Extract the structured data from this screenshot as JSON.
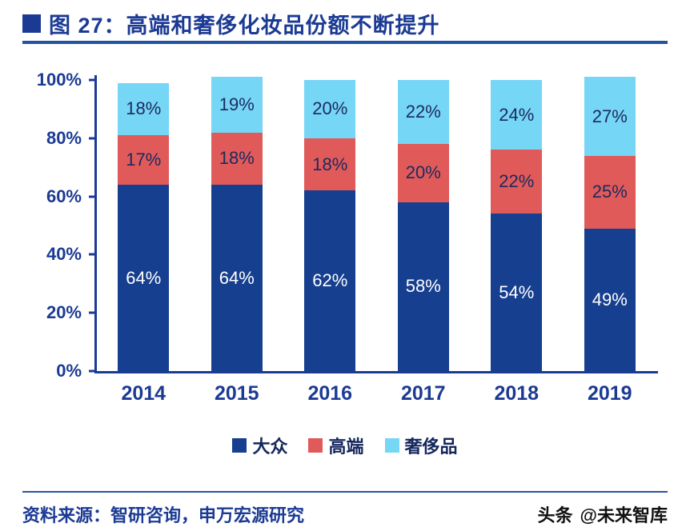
{
  "title": "图 27：高端和奢侈化妆品份额不断提升",
  "chart_data": {
    "type": "bar",
    "stacked": true,
    "title": "图 27：高端和奢侈化妆品份额不断提升",
    "xlabel": "",
    "ylabel": "",
    "categories": [
      "2014",
      "2015",
      "2016",
      "2017",
      "2018",
      "2019"
    ],
    "series": [
      {
        "name": "大众",
        "color": "#163f8f",
        "label_color": "#ffffff",
        "values": [
          64,
          64,
          62,
          58,
          54,
          49
        ]
      },
      {
        "name": "高端",
        "color": "#e05a5a",
        "label_color": "#1b2a5e",
        "values": [
          17,
          18,
          18,
          20,
          22,
          25
        ]
      },
      {
        "name": "奢侈品",
        "color": "#76d6f5",
        "label_color": "#1b2a5e",
        "values": [
          18,
          19,
          20,
          22,
          24,
          27
        ]
      }
    ],
    "y_ticks": [
      "100%",
      "80%",
      "60%",
      "40%",
      "20%",
      "0%"
    ],
    "ylim": [
      0,
      100
    ],
    "grid": false,
    "legend_position": "bottom",
    "value_suffix": "%"
  },
  "footer": {
    "source": "资料来源：智研咨询，申万宏源研究"
  },
  "watermark": {
    "brand": "头条",
    "handle": "@未来智库"
  }
}
